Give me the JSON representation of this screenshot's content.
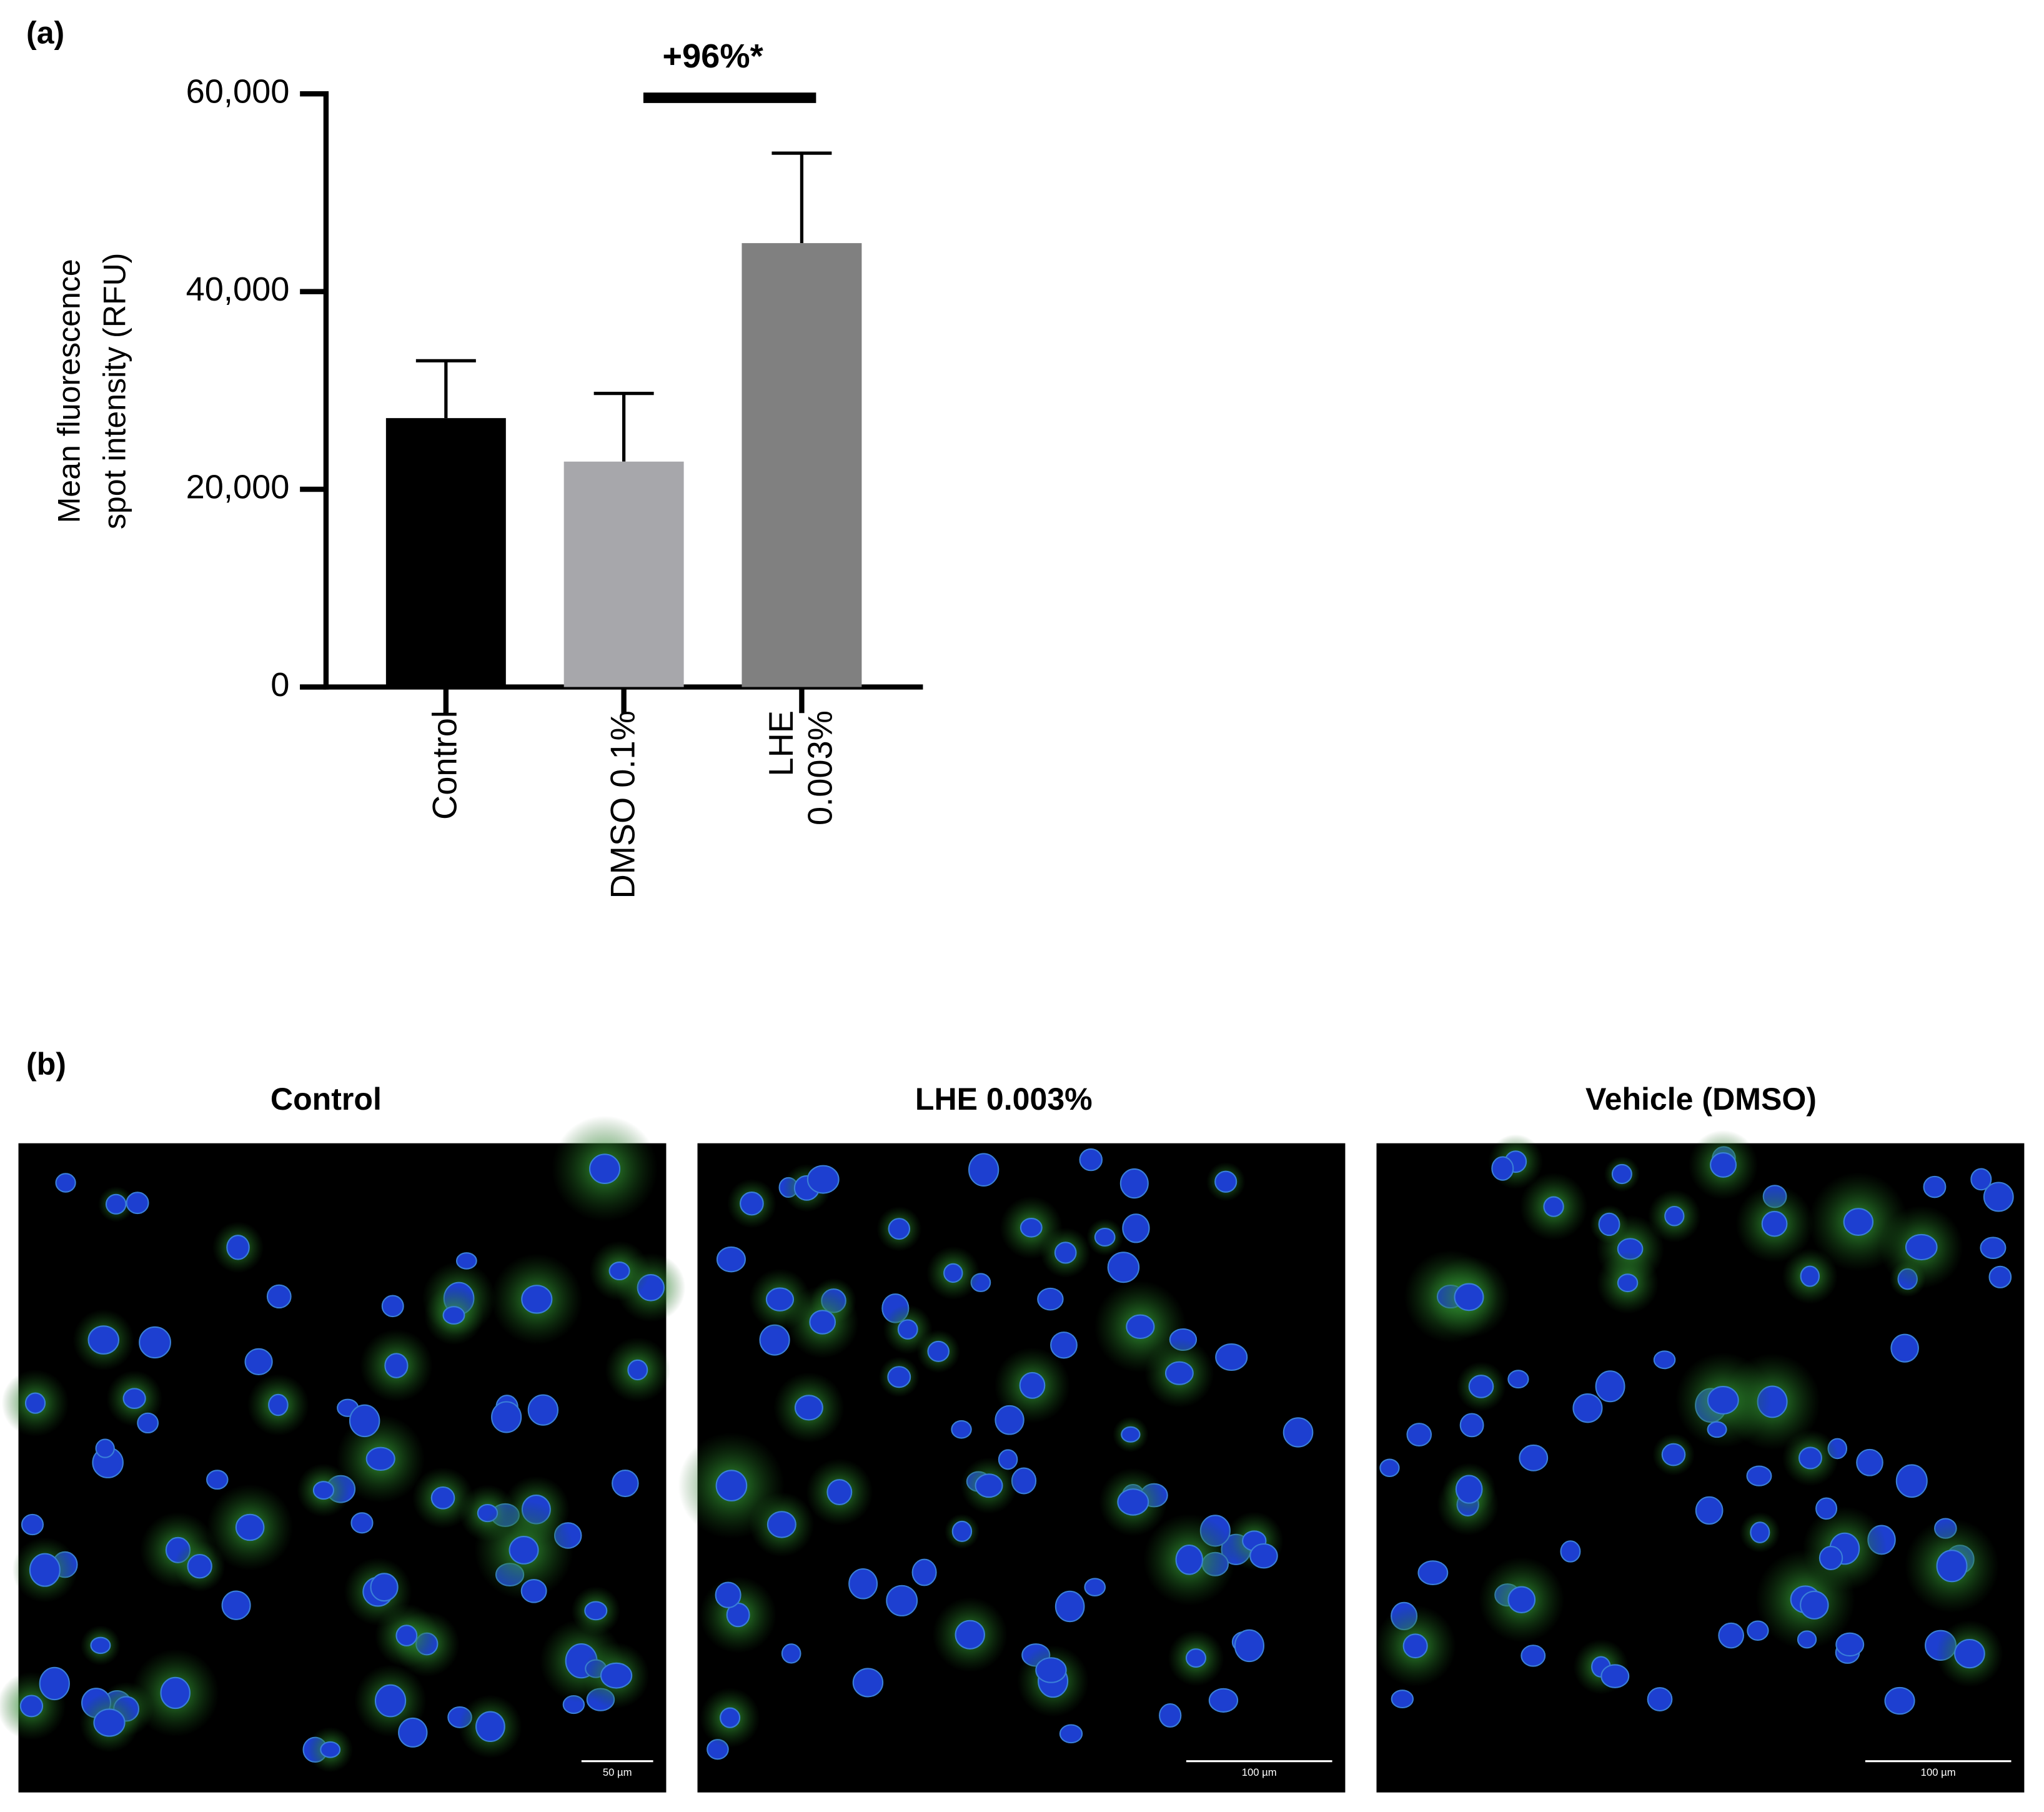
{
  "chart_data": {
    "type": "bar",
    "panel_label": "(a)",
    "ylabel": "Mean fluorescence\nspot intensity (RFU)",
    "categories": [
      "Control",
      "DMSO 0.1%",
      "LHE\n0.003%"
    ],
    "values": [
      27200,
      22800,
      44900
    ],
    "errors": [
      5800,
      6900,
      9100
    ],
    "colors": [
      "#000000",
      "#a7a7ab",
      "#808080"
    ],
    "ylim": [
      0,
      60000
    ],
    "yticks": [
      0,
      {
        "value": 20000,
        "label": "20,000"
      },
      {
        "value": 40000,
        "label": "40,000"
      },
      {
        "value": 60000,
        "label": "60,000"
      }
    ],
    "annotation": {
      "text": "+96%*",
      "from": 1,
      "to": 2
    }
  },
  "images": {
    "panel_label": "(b)",
    "panels": [
      {
        "title": "Control",
        "scale_bar": "50 µm"
      },
      {
        "title": "LHE 0.003%",
        "scale_bar": "100 µm"
      },
      {
        "title": "Vehicle (DMSO)",
        "scale_bar": "100 µm"
      }
    ]
  }
}
